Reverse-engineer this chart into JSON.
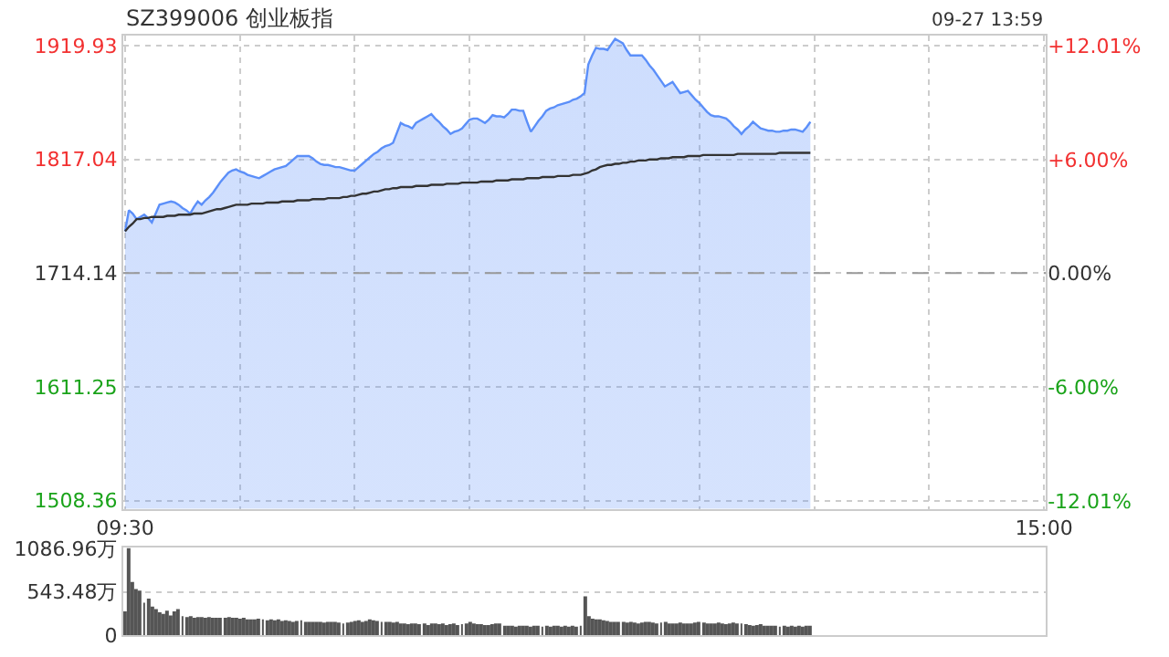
{
  "chart_data": [
    {
      "type": "line",
      "title": "SZ399006 创业板指",
      "annotations": [
        "09-27 13:59"
      ],
      "legend": false,
      "grid": true,
      "categories": [
        "09:30",
        null,
        null,
        null,
        null,
        null,
        null,
        null,
        null,
        null,
        null,
        null,
        null,
        null,
        null,
        null,
        null,
        null,
        null,
        null,
        null,
        null,
        null,
        null,
        null,
        null,
        null,
        null,
        null,
        null,
        null,
        null,
        null,
        null,
        null,
        null,
        null,
        null,
        null,
        null,
        null,
        null,
        null,
        null,
        null,
        null,
        null,
        null,
        null,
        null,
        null,
        null,
        null,
        null,
        null,
        null,
        null,
        null,
        null,
        null,
        null,
        null,
        null,
        null,
        null,
        null,
        null,
        null,
        null,
        null,
        null,
        null,
        null,
        null,
        null,
        null,
        null,
        null,
        null,
        null,
        null,
        null,
        null,
        null,
        null,
        null,
        null,
        null,
        null,
        null,
        null,
        null,
        null,
        null,
        null,
        null,
        null,
        null,
        null,
        null,
        null,
        null,
        null,
        null,
        null,
        null,
        null,
        null,
        null,
        null,
        null,
        null,
        null,
        null,
        null,
        null,
        null,
        null,
        null,
        null,
        null,
        null,
        null,
        null,
        null,
        null,
        null,
        null,
        null,
        null,
        null,
        null,
        null,
        null,
        null,
        null,
        null,
        null,
        null,
        null,
        null,
        null,
        null,
        null,
        null,
        null,
        null,
        null,
        null,
        null,
        null,
        null,
        null,
        null,
        null,
        null,
        null,
        null,
        null,
        null,
        null,
        null,
        null,
        null,
        null,
        null,
        null,
        null,
        null,
        null,
        null,
        null,
        null,
        null,
        null,
        null,
        null,
        null,
        null,
        null,
        null,
        null,
        null,
        null,
        null,
        null,
        null,
        null,
        null,
        null,
        null,
        null,
        null,
        null,
        null,
        null,
        null,
        null,
        null,
        null,
        null,
        null,
        null,
        null,
        null,
        null,
        null,
        null,
        null,
        null,
        null,
        null,
        null,
        null,
        null,
        null,
        null,
        null,
        null,
        null,
        null,
        null,
        null,
        null,
        null,
        null,
        null,
        null,
        null,
        null,
        null,
        null,
        null,
        null,
        null,
        null,
        null,
        null,
        null,
        null,
        "15:00"
      ],
      "ylim": [
        1501,
        1929
      ],
      "yticks": [
        1508.36,
        1611.25,
        1714.14,
        1817.04,
        1919.93
      ],
      "y2lim": [
        -12.43,
        12.54
      ],
      "y2ticks": [
        {
          "value": -12.01,
          "label": "-12.01%"
        },
        {
          "value": -6.0,
          "label": "-6.00%"
        },
        {
          "value": 0,
          "label": "0.00%"
        },
        {
          "value": 6.0,
          "label": "+6.00%"
        },
        {
          "value": 12.01,
          "label": "+12.01%"
        }
      ],
      "ref_lines": [
        {
          "axis": "y",
          "value": 1714.14,
          "color": "#999999",
          "line_style": "dashed"
        }
      ],
      "series": [
        {
          "type": "area",
          "color": "#5b8ff9",
          "values": [
            1752,
            1771,
            1768,
            1763,
            1765,
            1767,
            1764,
            1760,
            1768,
            1776,
            1777,
            1778,
            1779,
            1778,
            1776,
            1773,
            1771,
            1768,
            1774,
            1779,
            1776,
            1780,
            1783,
            1787,
            1792,
            1797,
            1801,
            1805,
            1807,
            1808,
            1806,
            1805,
            1803,
            1802,
            1801,
            1800,
            1802,
            1804,
            1806,
            1808,
            1809,
            1810,
            1811,
            1814,
            1817,
            1820,
            1820,
            1820,
            1820,
            1818,
            1815,
            1813,
            1812,
            1812,
            1811,
            1810,
            1810,
            1809,
            1808,
            1807,
            1807,
            1810,
            1813,
            1816,
            1819,
            1822,
            1824,
            1827,
            1829,
            1830,
            1832,
            1841,
            1850,
            1848,
            1847,
            1845,
            1850,
            1852,
            1854,
            1856,
            1858,
            1854,
            1851,
            1847,
            1844,
            1840,
            1842,
            1843,
            1845,
            1849,
            1853,
            1854,
            1854,
            1852,
            1850,
            1853,
            1857,
            1856,
            1856,
            1855,
            1858,
            1862,
            1862,
            1861,
            1861,
            1851,
            1842,
            1847,
            1852,
            1856,
            1861,
            1863,
            1864,
            1866,
            1867,
            1868,
            1869,
            1871,
            1872,
            1874,
            1877,
            1903,
            1911,
            1918,
            1917,
            1917,
            1916,
            1921,
            1926,
            1924,
            1922,
            1916,
            1911,
            1911,
            1911,
            1911,
            1907,
            1902,
            1898,
            1893,
            1888,
            1883,
            1885,
            1887,
            1882,
            1877,
            1878,
            1879,
            1875,
            1871,
            1868,
            1864,
            1860,
            1857,
            1856,
            1856,
            1855,
            1854,
            1851,
            1847,
            1844,
            1840,
            1844,
            1847,
            1851,
            1848,
            1845,
            1844,
            1843,
            1843,
            1842,
            1842,
            1843,
            1843,
            1844,
            1844,
            1843,
            1842,
            1846,
            1851,
            null,
            null,
            null,
            null,
            null,
            null,
            null,
            null,
            null,
            null,
            null,
            null,
            null,
            null,
            null,
            null,
            null,
            null,
            null,
            null,
            null,
            null,
            null,
            null,
            null,
            null,
            null,
            null,
            null,
            null,
            null,
            null,
            null,
            null,
            null,
            null,
            null,
            null,
            null,
            null,
            null,
            null,
            null,
            null,
            null,
            null,
            null,
            null,
            null,
            null,
            null,
            null,
            null,
            null,
            null,
            null,
            null,
            null,
            null,
            null,
            null
          ]
        },
        {
          "type": "line",
          "color": "#333333",
          "values": [
            1752,
            1756,
            1759,
            1763,
            1763,
            1764,
            1764,
            1765,
            1765,
            1765,
            1765,
            1766,
            1766,
            1766,
            1767,
            1767,
            1767,
            1767,
            1768,
            1768,
            1768,
            1769,
            1770,
            1771,
            1772,
            1772,
            1773,
            1774,
            1775,
            1776,
            1776,
            1776,
            1776,
            1777,
            1777,
            1777,
            1777,
            1778,
            1778,
            1778,
            1778,
            1779,
            1779,
            1779,
            1779,
            1780,
            1780,
            1780,
            1780,
            1781,
            1781,
            1781,
            1781,
            1782,
            1782,
            1782,
            1782,
            1783,
            1783,
            1784,
            1784,
            1785,
            1786,
            1786,
            1787,
            1788,
            1788,
            1789,
            1790,
            1790,
            1791,
            1791,
            1792,
            1792,
            1792,
            1792,
            1793,
            1793,
            1793,
            1793,
            1794,
            1794,
            1794,
            1794,
            1795,
            1795,
            1795,
            1795,
            1796,
            1796,
            1796,
            1796,
            1796,
            1797,
            1797,
            1797,
            1797,
            1798,
            1798,
            1798,
            1798,
            1799,
            1799,
            1799,
            1799,
            1800,
            1800,
            1800,
            1800,
            1801,
            1801,
            1801,
            1801,
            1802,
            1802,
            1802,
            1802,
            1803,
            1803,
            1803,
            1804,
            1805,
            1807,
            1808,
            1810,
            1811,
            1812,
            1812,
            1813,
            1813,
            1814,
            1814,
            1815,
            1815,
            1816,
            1816,
            1816,
            1817,
            1817,
            1817,
            1818,
            1818,
            1818,
            1819,
            1819,
            1819,
            1819,
            1820,
            1820,
            1820,
            1820,
            1821,
            1821,
            1821,
            1821,
            1821,
            1821,
            1821,
            1821,
            1821,
            1822,
            1822,
            1822,
            1822,
            1822,
            1822,
            1822,
            1822,
            1822,
            1822,
            1822,
            1823,
            1823,
            1823,
            1823,
            1823,
            1823,
            1823,
            1823,
            1823,
            null,
            null,
            null,
            null,
            null,
            null,
            null,
            null,
            null,
            null,
            null,
            null,
            null,
            null,
            null,
            null,
            null,
            null,
            null,
            null,
            null,
            null,
            null,
            null,
            null,
            null,
            null,
            null,
            null,
            null,
            null,
            null,
            null,
            null,
            null,
            null,
            null,
            null,
            null,
            null,
            null,
            null,
            null,
            null,
            null,
            null,
            null,
            null,
            null,
            null,
            null,
            null,
            null,
            null,
            null,
            null,
            null,
            null,
            null,
            null,
            null
          ]
        }
      ]
    },
    {
      "type": "bar",
      "legend": false,
      "grid": "y",
      "tick_labels": "y",
      "categories": [
        null,
        null,
        null,
        null,
        null,
        null,
        null,
        null,
        null,
        null,
        null,
        null,
        null,
        null,
        null,
        null,
        null,
        null,
        null,
        null,
        null,
        null,
        null,
        null,
        null,
        null,
        null,
        null,
        null,
        null,
        null,
        null,
        null,
        null,
        null,
        null,
        null,
        null,
        null,
        null,
        null,
        null,
        null,
        null,
        null,
        null,
        null,
        null,
        null,
        null,
        null,
        null,
        null,
        null,
        null,
        null,
        null,
        null,
        null,
        null,
        null,
        null,
        null,
        null,
        null,
        null,
        null,
        null,
        null,
        null,
        null,
        null,
        null,
        null,
        null,
        null,
        null,
        null,
        null,
        null,
        null,
        null,
        null,
        null,
        null,
        null,
        null,
        null,
        null,
        null,
        null,
        null,
        null,
        null,
        null,
        null,
        null,
        null,
        null,
        null,
        null,
        null,
        null,
        null,
        null,
        null,
        null,
        null,
        null,
        null,
        null,
        null,
        null,
        null,
        null,
        null,
        null,
        null,
        null,
        null,
        null,
        null,
        null,
        null,
        null,
        null,
        null,
        null,
        null,
        null,
        null,
        null,
        null,
        null,
        null,
        null,
        null,
        null,
        null,
        null,
        null,
        null,
        null,
        null,
        null,
        null,
        null,
        null,
        null,
        null,
        null,
        null,
        null,
        null,
        null,
        null,
        null,
        null,
        null,
        null,
        null,
        null,
        null,
        null,
        null,
        null,
        null,
        null,
        null,
        null,
        null,
        null,
        null,
        null,
        null,
        null,
        null,
        null,
        null,
        null,
        null,
        null,
        null,
        null,
        null,
        null,
        null,
        null,
        null,
        null,
        null,
        null,
        null,
        null,
        null,
        null,
        null,
        null,
        null,
        null,
        null,
        null,
        null,
        null,
        null,
        null,
        null,
        null,
        null,
        null,
        null,
        null,
        null,
        null,
        null,
        null,
        null,
        null,
        null,
        null,
        null,
        null,
        null,
        null,
        null,
        null,
        null,
        null,
        null,
        null,
        null,
        null,
        null,
        null,
        null,
        null,
        null,
        null,
        null,
        null,
        null
      ],
      "ylim": [
        0,
        1100
      ],
      "yticks": [
        0,
        {
          "value": 543.48,
          "label": "543.48万"
        },
        {
          "value": 1086.96,
          "label": "1086.96万"
        }
      ],
      "series": [
        {
          "color": "#555555",
          "values": [
            300,
            1090,
            670,
            580,
            560,
            410,
            460,
            360,
            330,
            290,
            270,
            310,
            250,
            300,
            330,
            240,
            230,
            240,
            220,
            230,
            230,
            220,
            230,
            220,
            220,
            220,
            220,
            230,
            220,
            220,
            210,
            220,
            200,
            200,
            200,
            210,
            200,
            190,
            200,
            190,
            200,
            180,
            190,
            180,
            170,
            180,
            190,
            170,
            170,
            170,
            170,
            170,
            160,
            170,
            170,
            170,
            160,
            150,
            160,
            170,
            180,
            190,
            170,
            180,
            200,
            190,
            180,
            170,
            170,
            170,
            160,
            170,
            150,
            150,
            140,
            150,
            150,
            140,
            150,
            130,
            150,
            150,
            140,
            150,
            130,
            140,
            150,
            130,
            140,
            150,
            170,
            150,
            140,
            140,
            130,
            130,
            140,
            150,
            150,
            120,
            120,
            120,
            110,
            120,
            120,
            120,
            110,
            120,
            120,
            110,
            120,
            110,
            120,
            120,
            110,
            120,
            110,
            120,
            110,
            120,
            490,
            240,
            210,
            200,
            200,
            190,
            180,
            170,
            170,
            170,
            170,
            160,
            170,
            160,
            150,
            160,
            170,
            170,
            160,
            150,
            160,
            170,
            150,
            150,
            150,
            160,
            150,
            150,
            150,
            160,
            170,
            160,
            150,
            150,
            150,
            160,
            150,
            140,
            150,
            160,
            150,
            150,
            140,
            130,
            120,
            130,
            140,
            120,
            120,
            120,
            120,
            110,
            120,
            110,
            120,
            110,
            120,
            110,
            120,
            120,
            null,
            null,
            null,
            null,
            null,
            null,
            null,
            null,
            null,
            null,
            null,
            null,
            null,
            null,
            null,
            null,
            null,
            null,
            null,
            null,
            null,
            null,
            null,
            null,
            null,
            null,
            null,
            null,
            null,
            null,
            null,
            null,
            null,
            null,
            null,
            null,
            null,
            null,
            null,
            null,
            null,
            null,
            null,
            null,
            null,
            null,
            null,
            null,
            null,
            null,
            null,
            null,
            null,
            null,
            null,
            null,
            null,
            null,
            null,
            null,
            null
          ]
        }
      ]
    }
  ]
}
